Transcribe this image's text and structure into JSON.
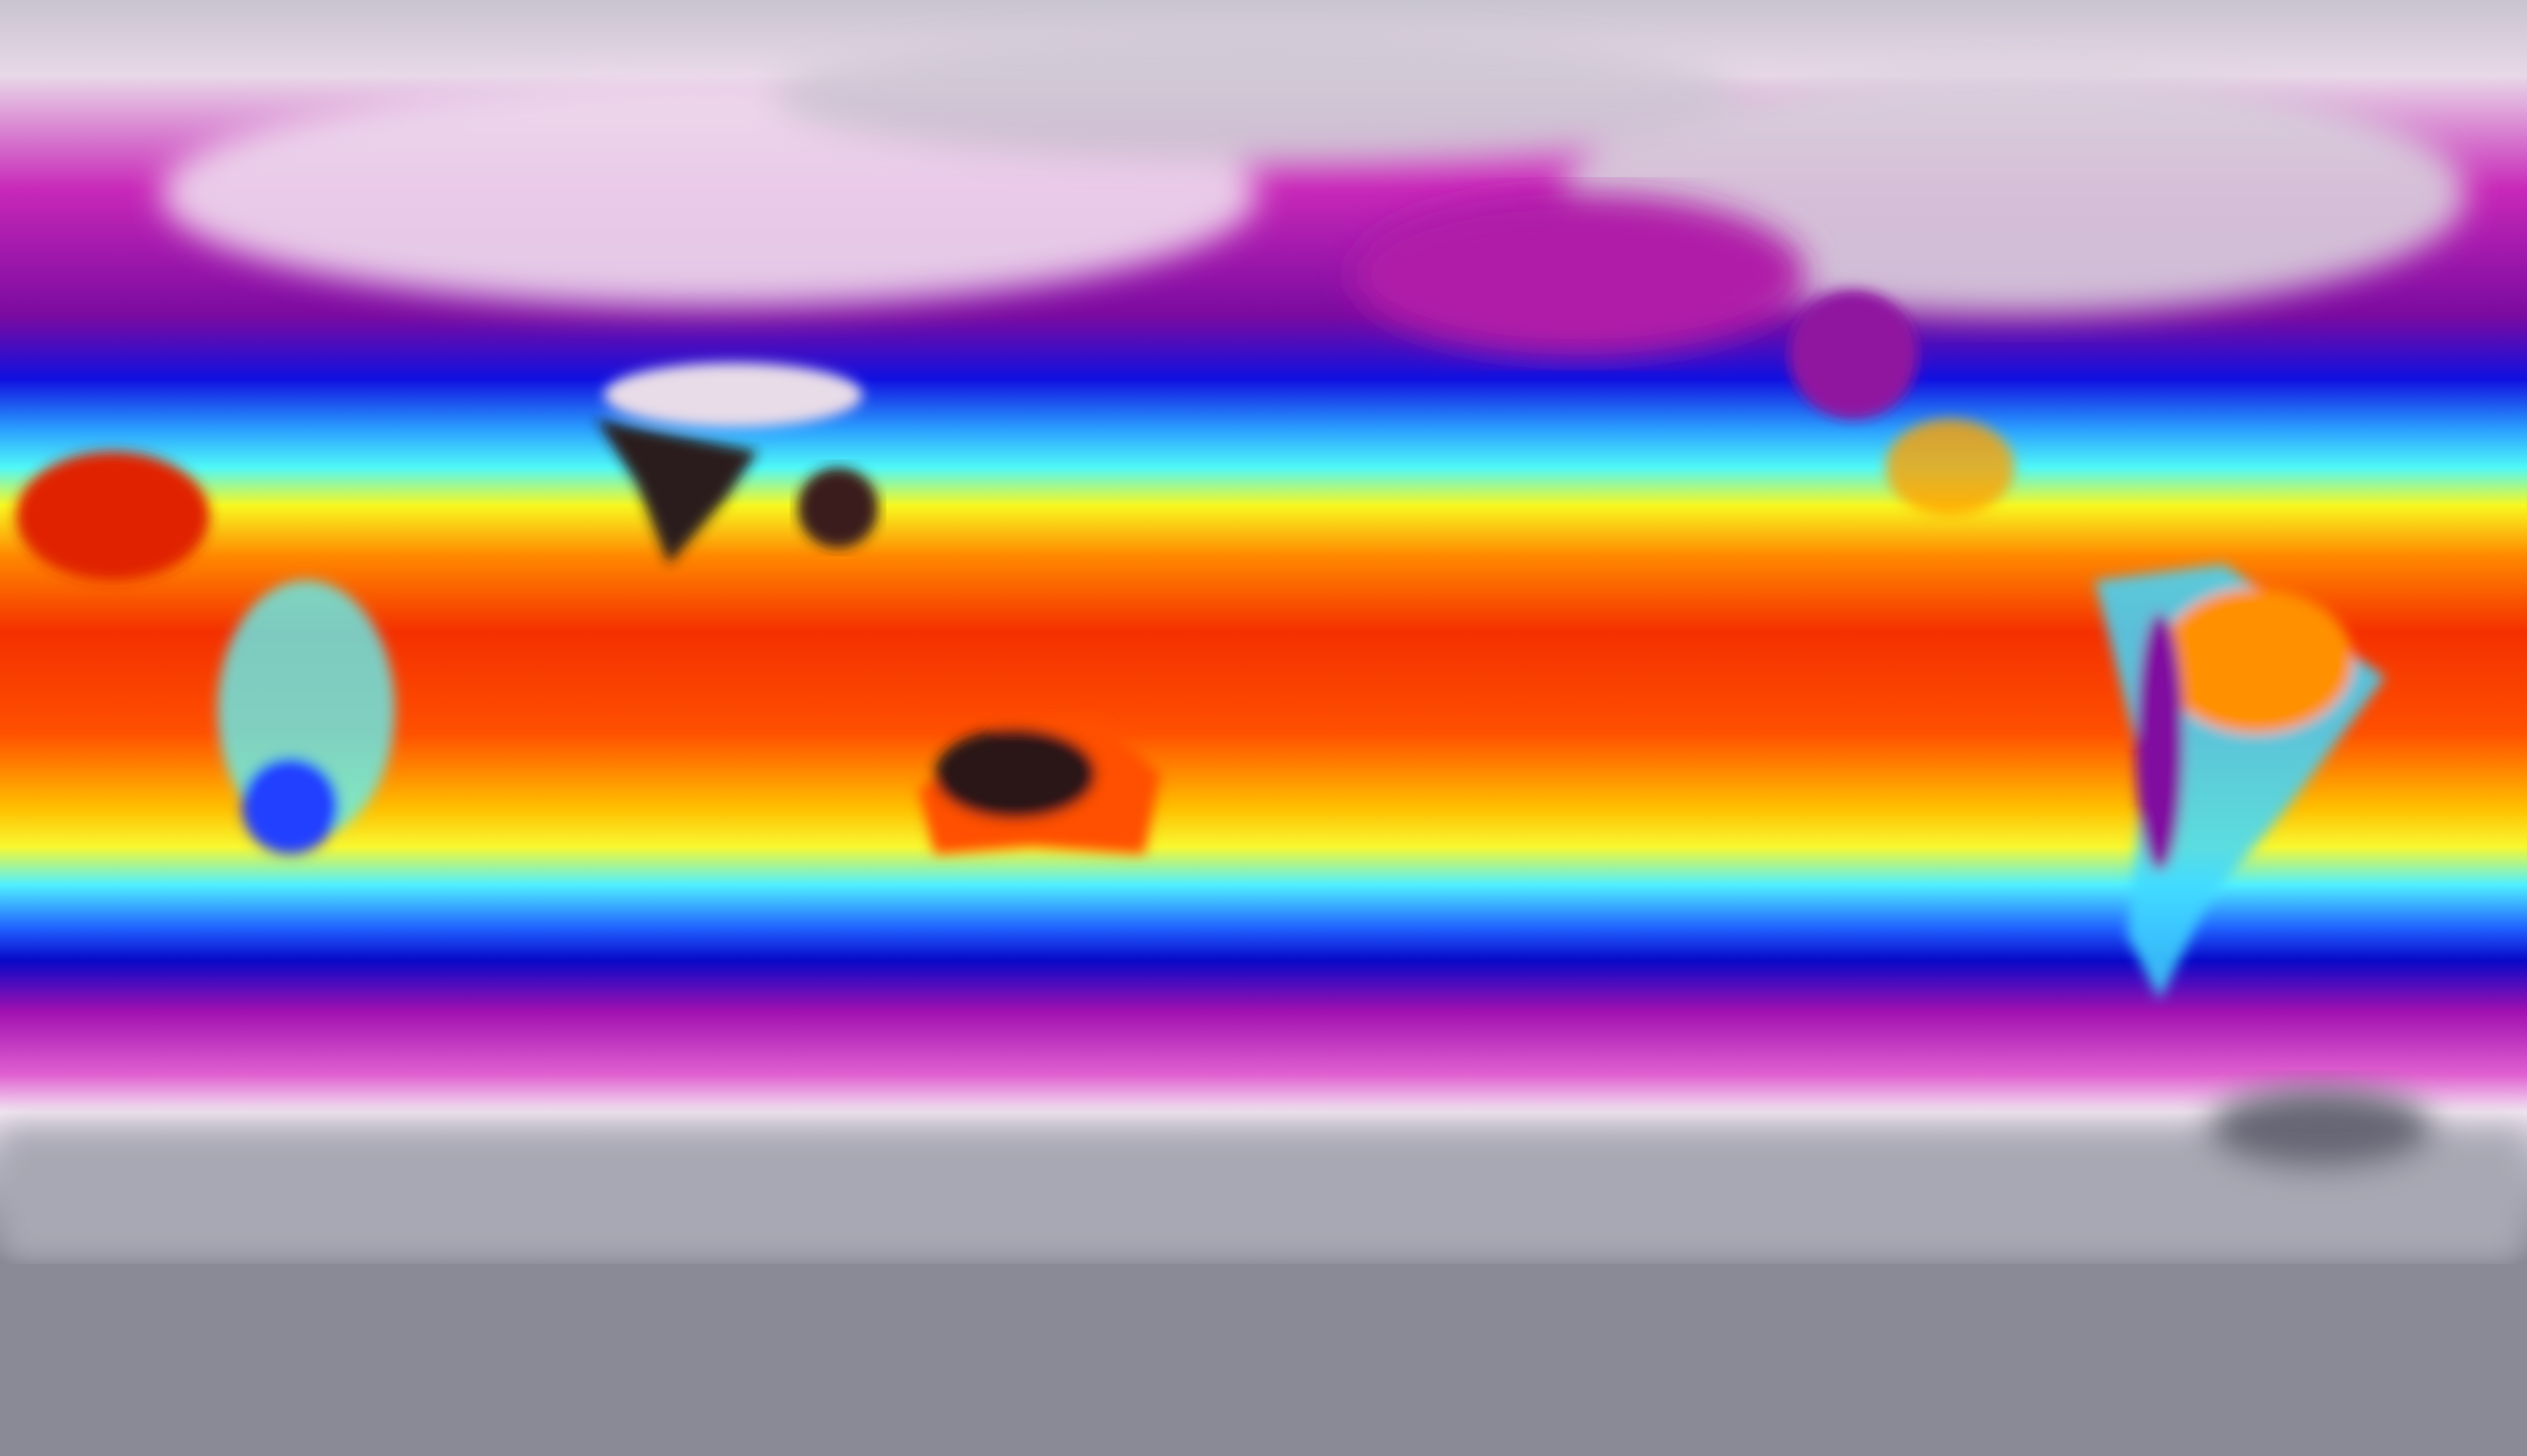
{
  "map": {
    "projection": "equirectangular",
    "field": "surface-temperature",
    "colormap": [
      "#7e7e8c",
      "#f2e6f2",
      "#c020b0",
      "#8a0a9a",
      "#0a10d8",
      "#1070ff",
      "#40f0ff",
      "#f8f820",
      "#ffb000",
      "#ff5000",
      "#f02800",
      "#3a1a1a"
    ],
    "land_hot_color": "#2a1a1a",
    "cold_land_color": "#e8dce8"
  }
}
